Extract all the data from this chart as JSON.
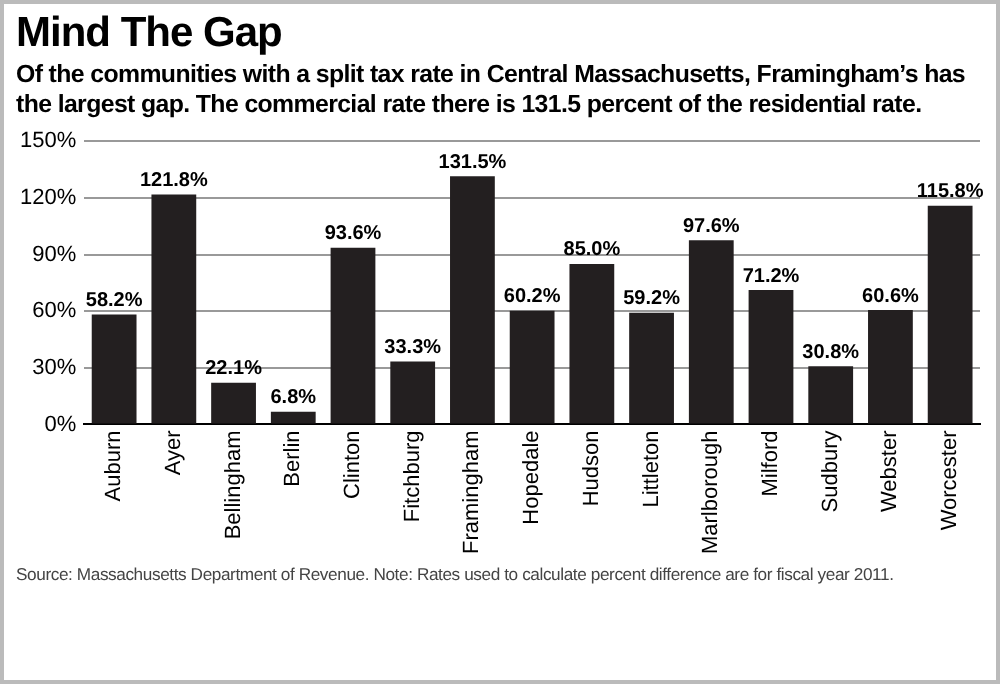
{
  "chart_data": {
    "type": "bar",
    "title": "Mind The Gap",
    "subtitle": "Of the communities with a split tax rate in Central Massachusetts, Framingham’s has the largest gap. The commercial rate there is 131.5 percent of the residential rate.",
    "categories": [
      "Auburn",
      "Ayer",
      "Bellingham",
      "Berlin",
      "Clinton",
      "Fitchburg",
      "Framingham",
      "Hopedale",
      "Hudson",
      "Littleton",
      "Marlborough",
      "Milford",
      "Sudbury",
      "Webster",
      "Worcester"
    ],
    "values": [
      58.2,
      121.8,
      22.1,
      6.8,
      93.6,
      33.3,
      131.5,
      60.2,
      85.0,
      59.2,
      97.6,
      71.2,
      30.8,
      60.6,
      115.8
    ],
    "value_labels": [
      "58.2%",
      "121.8%",
      "22.1%",
      "6.8%",
      "93.6%",
      "33.3%",
      "131.5%",
      "60.2%",
      "85.0%",
      "59.2%",
      "97.6%",
      "71.2%",
      "30.8%",
      "60.6%",
      "115.8%"
    ],
    "color": "#231f20",
    "ylim": [
      0,
      150
    ],
    "yticks": [
      {
        "value": 0,
        "label": "0%"
      },
      {
        "value": 30,
        "label": "30%"
      },
      {
        "value": 60,
        "label": "60%"
      },
      {
        "value": 90,
        "label": "90%"
      },
      {
        "value": 120,
        "label": "120%"
      },
      {
        "value": 150,
        "label": "150%"
      }
    ],
    "grid": "y",
    "annotations": [
      "Source: Massachusetts Department of Revenue. Note: Rates used to calculate percent difference are for fiscal year 2011."
    ]
  }
}
